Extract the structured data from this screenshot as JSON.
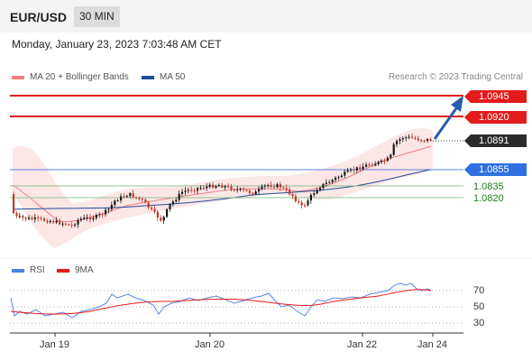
{
  "header": {
    "pair": "EUR/USD",
    "timeframe": "30 MIN"
  },
  "datetime": "Monday, January 23, 2023 7:03:48 AM CET",
  "legend": {
    "bb_label": "MA 20 + Bollinger Bands",
    "bb_color": "#f08080",
    "ma50_label": "MA 50",
    "ma50_color": "#1f4e9b",
    "credit": "Research © 2023 Trading Central"
  },
  "levels": {
    "r2": "1.0945",
    "r1": "1.0920",
    "last": "1.0891",
    "pivot": "1.0855",
    "s1": "1.0835",
    "s2": "1.0820"
  },
  "rsi_legend": {
    "rsi_label": "RSI",
    "rsi_color": "#4f7fe0",
    "ma_label": "9MA",
    "ma_color": "#e31b1b"
  },
  "rsi_levels": {
    "high": "70",
    "mid": "50",
    "low": "30"
  },
  "x_axis": {
    "t1": "Jan 19",
    "t2": "Jan 20",
    "t3": "Jan 22",
    "t4": "Jan 24"
  }
}
